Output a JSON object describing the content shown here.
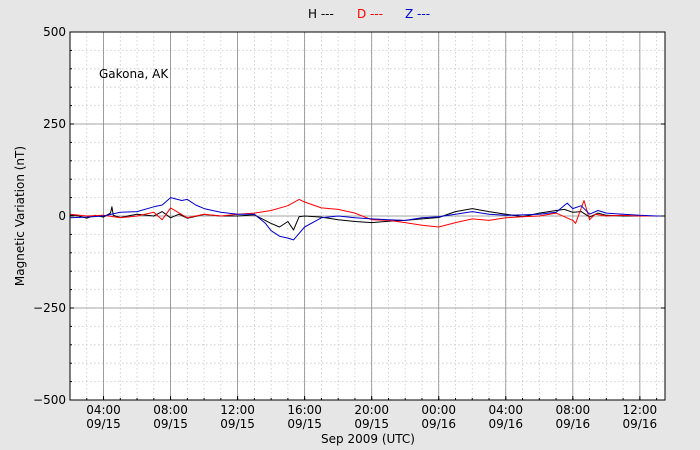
{
  "chart_data": {
    "type": "line",
    "title": "",
    "station": "Gakona, AK",
    "xlabel": "Sep 2009 (UTC)",
    "ylabel": "Magnetic Variation (nT)",
    "ylim": [
      -500,
      500
    ],
    "xlim": [
      "2009-09-15 02:00",
      "2009-09-16 13:30"
    ],
    "grid": true,
    "y_ticks": [
      {
        "value": 500,
        "label": "500"
      },
      {
        "value": 250,
        "label": "250"
      },
      {
        "value": 0,
        "label": "0"
      },
      {
        "value": -250,
        "label": "−250"
      },
      {
        "value": -500,
        "label": "−500"
      }
    ],
    "x_ticks": [
      {
        "t": "2009-09-15 04:00",
        "time": "04:00",
        "date": "09/15"
      },
      {
        "t": "2009-09-15 08:00",
        "time": "08:00",
        "date": "09/15"
      },
      {
        "t": "2009-09-15 12:00",
        "time": "12:00",
        "date": "09/15"
      },
      {
        "t": "2009-09-15 16:00",
        "time": "16:00",
        "date": "09/15"
      },
      {
        "t": "2009-09-15 20:00",
        "time": "20:00",
        "date": "09/15"
      },
      {
        "t": "2009-09-16 00:00",
        "time": "00:00",
        "date": "09/16"
      },
      {
        "t": "2009-09-16 04:00",
        "time": "04:00",
        "date": "09/16"
      },
      {
        "t": "2009-09-16 08:00",
        "time": "08:00",
        "date": "09/16"
      },
      {
        "t": "2009-09-16 12:00",
        "time": "12:00",
        "date": "09/16"
      }
    ],
    "legend": [
      {
        "label": "H ---",
        "color": "#000000"
      },
      {
        "label": "D ---",
        "color": "#ff0000"
      },
      {
        "label": "Z ---",
        "color": "#0000cc"
      }
    ],
    "series": [
      {
        "name": "H",
        "color": "#000000",
        "x": [
          "2009-09-15 02:00",
          "2009-09-15 02:30",
          "2009-09-15 03:00",
          "2009-09-15 03:30",
          "2009-09-15 04:00",
          "2009-09-15 04:25",
          "2009-09-15 04:30",
          "2009-09-15 04:35",
          "2009-09-15 05:00",
          "2009-09-15 06:00",
          "2009-09-15 07:00",
          "2009-09-15 07:30",
          "2009-09-15 08:00",
          "2009-09-15 08:30",
          "2009-09-15 09:00",
          "2009-09-15 10:00",
          "2009-09-15 11:00",
          "2009-09-15 12:00",
          "2009-09-15 13:00",
          "2009-09-15 14:00",
          "2009-09-15 14:30",
          "2009-09-15 15:00",
          "2009-09-15 15:20",
          "2009-09-15 15:40",
          "2009-09-15 16:00",
          "2009-09-15 17:00",
          "2009-09-15 18:00",
          "2009-09-15 19:00",
          "2009-09-15 20:00",
          "2009-09-15 21:00",
          "2009-09-15 22:00",
          "2009-09-15 23:00",
          "2009-09-16 00:00",
          "2009-09-16 01:00",
          "2009-09-16 02:00",
          "2009-09-16 03:00",
          "2009-09-16 04:00",
          "2009-09-16 05:00",
          "2009-09-16 06:00",
          "2009-09-16 07:00",
          "2009-09-16 07:30",
          "2009-09-16 08:00",
          "2009-09-16 08:30",
          "2009-09-16 09:00",
          "2009-09-16 09:30",
          "2009-09-16 10:00",
          "2009-09-16 11:00",
          "2009-09-16 12:00",
          "2009-09-16 13:00",
          "2009-09-16 13:30"
        ],
        "y": [
          2,
          0,
          -6,
          2,
          -3,
          8,
          25,
          2,
          -4,
          5,
          0,
          12,
          -5,
          5,
          -6,
          4,
          0,
          0,
          3,
          -20,
          -30,
          -15,
          -38,
          -2,
          0,
          -3,
          -10,
          -15,
          -18,
          -14,
          -12,
          -8,
          -4,
          12,
          20,
          12,
          5,
          -2,
          8,
          15,
          18,
          10,
          12,
          -3,
          8,
          2,
          0,
          0,
          0,
          0
        ]
      },
      {
        "name": "D",
        "color": "#ff0000",
        "x": [
          "2009-09-15 02:00",
          "2009-09-15 03:00",
          "2009-09-15 04:00",
          "2009-09-15 05:00",
          "2009-09-15 06:00",
          "2009-09-15 07:00",
          "2009-09-15 07:30",
          "2009-09-15 08:00",
          "2009-09-15 09:00",
          "2009-09-15 10:00",
          "2009-09-15 11:00",
          "2009-09-15 12:00",
          "2009-09-15 13:00",
          "2009-09-15 14:00",
          "2009-09-15 15:00",
          "2009-09-15 15:40",
          "2009-09-15 16:00",
          "2009-09-15 17:00",
          "2009-09-15 18:00",
          "2009-09-15 19:00",
          "2009-09-15 20:00",
          "2009-09-15 21:00",
          "2009-09-15 22:00",
          "2009-09-15 23:00",
          "2009-09-16 00:00",
          "2009-09-16 01:00",
          "2009-09-16 02:00",
          "2009-09-16 03:00",
          "2009-09-16 04:00",
          "2009-09-16 05:00",
          "2009-09-16 06:00",
          "2009-09-16 07:00",
          "2009-09-16 08:00",
          "2009-09-16 08:10",
          "2009-09-16 08:40",
          "2009-09-16 09:00",
          "2009-09-16 09:20",
          "2009-09-16 10:00",
          "2009-09-16 11:00",
          "2009-09-16 12:00",
          "2009-09-16 13:00",
          "2009-09-16 13:30"
        ],
        "y": [
          5,
          0,
          2,
          -5,
          0,
          10,
          -10,
          22,
          -5,
          5,
          0,
          5,
          8,
          15,
          28,
          45,
          38,
          22,
          18,
          8,
          -10,
          -12,
          -18,
          -25,
          -30,
          -18,
          -8,
          -12,
          -5,
          -2,
          0,
          8,
          -12,
          -20,
          42,
          -10,
          5,
          0,
          2,
          0,
          0,
          0
        ]
      },
      {
        "name": "Z",
        "color": "#0000cc",
        "x": [
          "2009-09-15 02:00",
          "2009-09-15 03:00",
          "2009-09-15 04:00",
          "2009-09-15 05:00",
          "2009-09-15 06:00",
          "2009-09-15 07:00",
          "2009-09-15 07:30",
          "2009-09-15 08:00",
          "2009-09-15 08:40",
          "2009-09-15 09:00",
          "2009-09-15 09:30",
          "2009-09-15 10:00",
          "2009-09-15 10:30",
          "2009-09-15 11:00",
          "2009-09-15 12:00",
          "2009-09-15 13:00",
          "2009-09-15 13:40",
          "2009-09-15 14:00",
          "2009-09-15 14:30",
          "2009-09-15 15:00",
          "2009-09-15 15:20",
          "2009-09-15 16:00",
          "2009-09-15 17:00",
          "2009-09-15 18:00",
          "2009-09-15 19:00",
          "2009-09-15 20:00",
          "2009-09-15 21:00",
          "2009-09-15 22:00",
          "2009-09-15 23:00",
          "2009-09-16 00:00",
          "2009-09-16 01:00",
          "2009-09-16 02:00",
          "2009-09-16 03:00",
          "2009-09-16 04:00",
          "2009-09-16 05:00",
          "2009-09-16 06:00",
          "2009-09-16 07:00",
          "2009-09-16 07:40",
          "2009-09-16 08:00",
          "2009-09-16 08:30",
          "2009-09-16 09:00",
          "2009-09-16 09:30",
          "2009-09-16 10:00",
          "2009-09-16 11:00",
          "2009-09-16 12:00",
          "2009-09-16 13:00",
          "2009-09-16 13:30"
        ],
        "y": [
          -5,
          -3,
          0,
          10,
          12,
          25,
          30,
          50,
          42,
          45,
          30,
          20,
          15,
          10,
          5,
          5,
          -20,
          -40,
          -55,
          -60,
          -65,
          -30,
          -5,
          0,
          -5,
          -8,
          -10,
          -12,
          -5,
          -2,
          5,
          12,
          5,
          2,
          3,
          5,
          10,
          35,
          20,
          28,
          5,
          15,
          8,
          5,
          2,
          0,
          0
        ]
      }
    ]
  }
}
